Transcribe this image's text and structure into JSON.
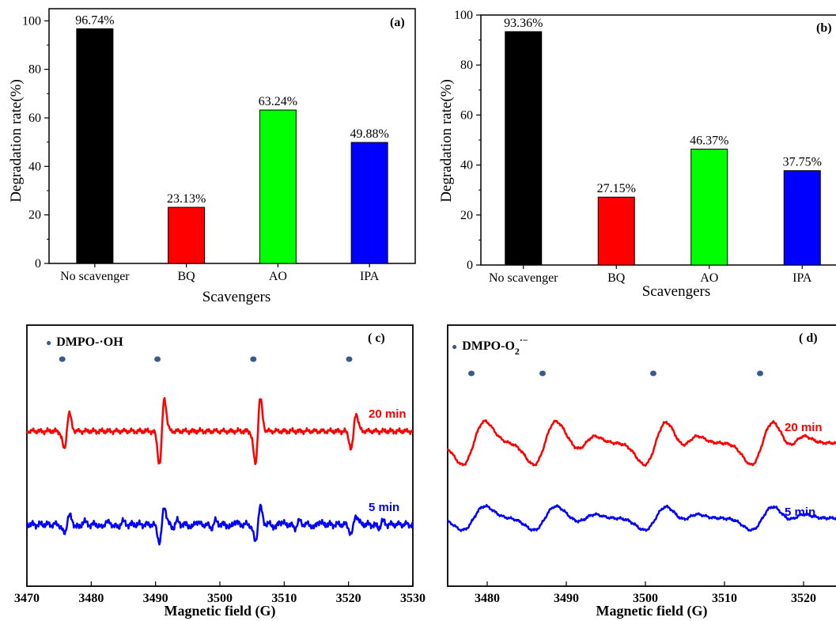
{
  "chart_data": [
    {
      "panel": "(a)",
      "type": "bar",
      "xlabel": "Scavengers",
      "ylabel": "Degradation rate(%)",
      "ylim": [
        0,
        105
      ],
      "yticks": [
        "0",
        "20",
        "40",
        "60",
        "80",
        "100"
      ],
      "categories": [
        "No scavenger",
        "BQ",
        "AO",
        "IPA"
      ],
      "values": [
        96.74,
        23.13,
        63.24,
        49.88
      ],
      "data_labels": [
        "96.74%",
        "23.13%",
        "63.24%",
        "49.88%"
      ],
      "colors": [
        "#000000",
        "#ff0000",
        "#00ff00",
        "#0000ff"
      ]
    },
    {
      "panel": "(b)",
      "type": "bar",
      "xlabel": "Scavengers",
      "ylabel": "Degradation rate(%)",
      "ylim": [
        0,
        100
      ],
      "yticks": [
        "0",
        "20",
        "40",
        "60",
        "80",
        "100"
      ],
      "categories": [
        "No scavenger",
        "BQ",
        "AO",
        "IPA"
      ],
      "values": [
        93.36,
        27.15,
        46.37,
        37.75
      ],
      "data_labels": [
        "93.36%",
        "27.15%",
        "46.37%",
        "37.75%"
      ],
      "colors": [
        "#000000",
        "#ff0000",
        "#00ff00",
        "#0000ff"
      ]
    },
    {
      "panel": "( c)",
      "type": "line",
      "xlabel": "Magnetic field (G)",
      "xlim": [
        3470,
        3530
      ],
      "xticks": [
        "3470",
        "3480",
        "3490",
        "3500",
        "3510",
        "3520",
        "3530"
      ],
      "legend": "DMPO-·OH",
      "marker_x": [
        3475.5,
        3490.3,
        3505.2,
        3520.1
      ],
      "series": [
        {
          "name": "20 min",
          "color": "#ff0000"
        },
        {
          "name": "5 min",
          "color": "#0000ff"
        }
      ]
    },
    {
      "panel": "( d)",
      "type": "line",
      "xlabel": "Magnetic field  (G)",
      "xlim": [
        3475,
        3525
      ],
      "xticks": [
        "3480",
        "3490",
        "3500",
        "3510",
        "3520"
      ],
      "legend": "DMPO-O",
      "legend_sub": "2",
      "legend_sup": "·−",
      "marker_x": [
        3478,
        3487,
        3501,
        3514.5
      ],
      "series": [
        {
          "name": "20 min",
          "color": "#ff0000"
        },
        {
          "name": "5 min",
          "color": "#0000ff"
        }
      ]
    }
  ],
  "colors": {
    "marker": "#3b5a8c"
  }
}
